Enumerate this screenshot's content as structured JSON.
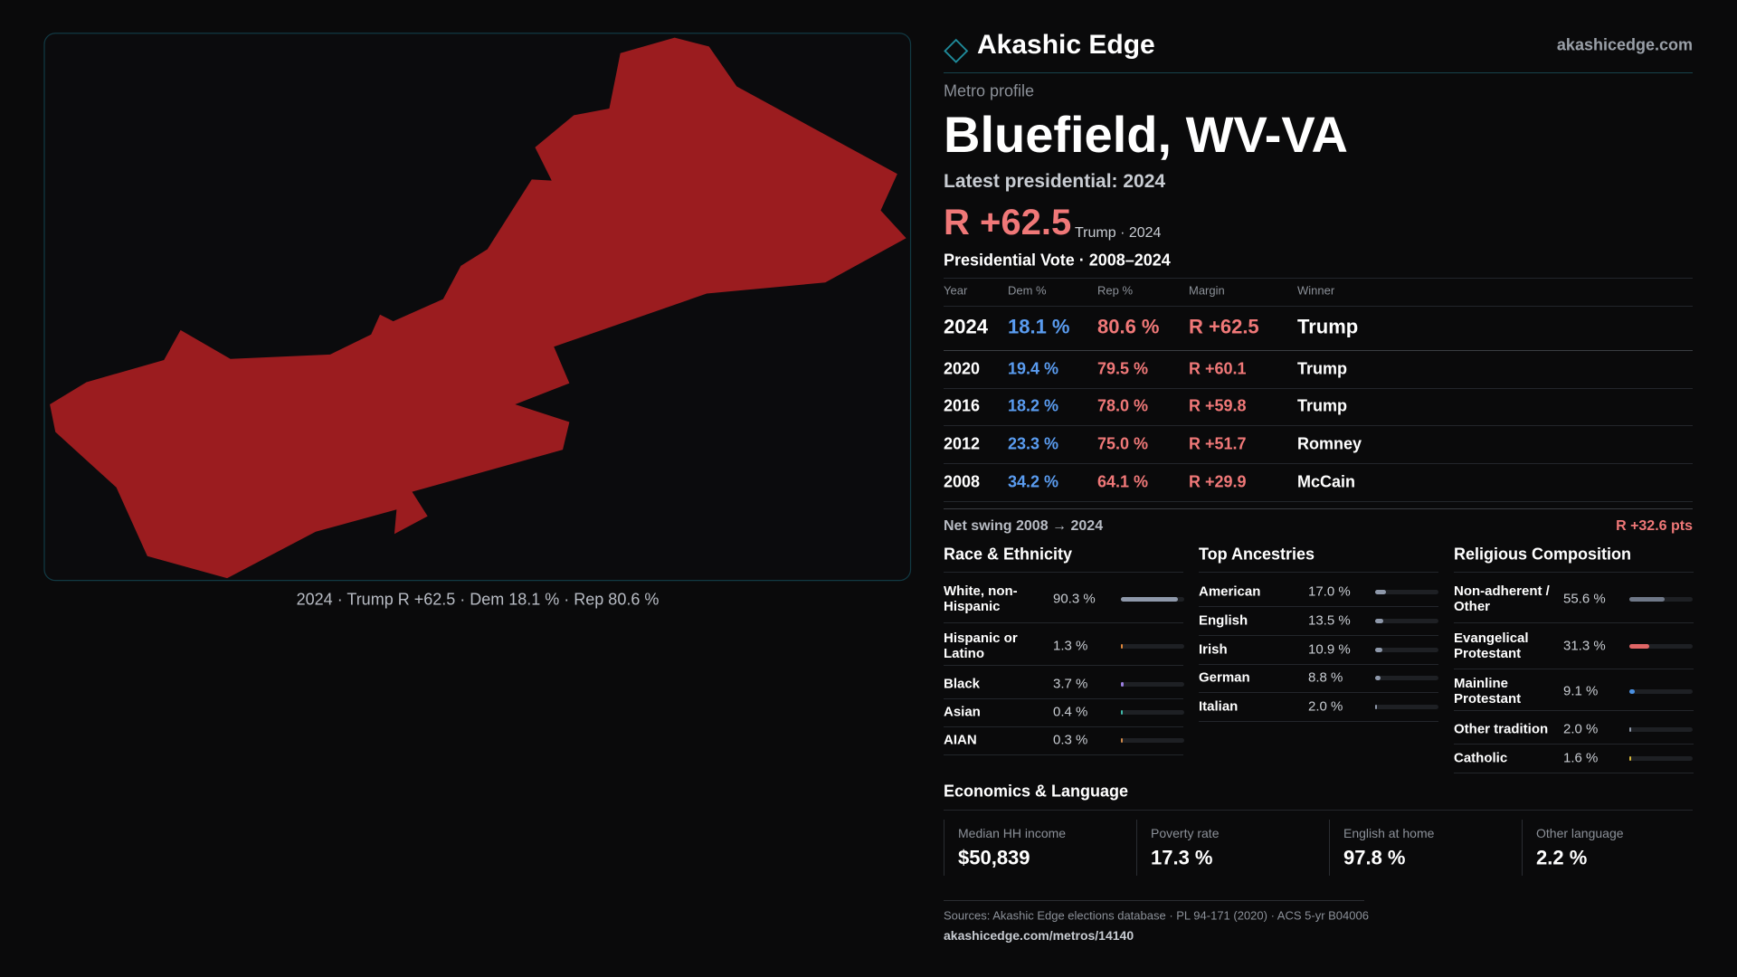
{
  "header": {
    "brand": "Akashic Edge",
    "site": "akashicedge.com"
  },
  "profile": {
    "kicker": "Metro profile",
    "title": "Bluefield, WV-VA",
    "latest": "Latest presidential: 2024",
    "margin": "R +62.5",
    "margin_note": "Trump · 2024"
  },
  "map": {
    "caption": "2024 · Trump R +62.5 · Dem 18.1 % · Rep 80.6 %"
  },
  "votes": {
    "title": "Presidential Vote · 2008–2024",
    "columns": [
      "Year",
      "Dem %",
      "Rep %",
      "Margin",
      "Winner"
    ],
    "rows": [
      [
        "2024",
        "18.1 %",
        "80.6 %",
        "R +62.5",
        "Trump"
      ],
      [
        "2020",
        "19.4 %",
        "79.5 %",
        "R +60.1",
        "Trump"
      ],
      [
        "2016",
        "18.2 %",
        "78.0 %",
        "R +59.8",
        "Trump"
      ],
      [
        "2012",
        "23.3 %",
        "75.0 %",
        "R +51.7",
        "Romney"
      ],
      [
        "2008",
        "34.2 %",
        "64.1 %",
        "R +29.9",
        "McCain"
      ]
    ]
  },
  "swing": {
    "label": "Net swing 2008 → 2024",
    "value": "R +32.6 pts"
  },
  "race": {
    "title": "Race & Ethnicity",
    "rows": [
      {
        "label": "White, non-Hispanic",
        "value": 90.3,
        "value_label": "90.3 %",
        "color": "#8e98aa"
      },
      {
        "label": "Hispanic or Latino",
        "value": 1.3,
        "value_label": "1.3 %",
        "color": "#e0873a"
      },
      {
        "label": "Black",
        "value": 3.7,
        "value_label": "3.7 %",
        "color": "#9b7fe0"
      },
      {
        "label": "Asian",
        "value": 0.4,
        "value_label": "0.4 %",
        "color": "#3fb8a8"
      },
      {
        "label": "AIAN",
        "value": 0.3,
        "value_label": "0.3 %",
        "color": "#d08a4a"
      }
    ]
  },
  "ancestry": {
    "title": "Top Ancestries",
    "rows": [
      {
        "label": "American",
        "value": 17.0,
        "value_label": "17.0 %",
        "color": "#8e98aa"
      },
      {
        "label": "English",
        "value": 13.5,
        "value_label": "13.5 %",
        "color": "#8e98aa"
      },
      {
        "label": "Irish",
        "value": 10.9,
        "value_label": "10.9 %",
        "color": "#8e98aa"
      },
      {
        "label": "German",
        "value": 8.8,
        "value_label": "8.8 %",
        "color": "#8e98aa"
      },
      {
        "label": "Italian",
        "value": 2.0,
        "value_label": "2.0 %",
        "color": "#8e98aa"
      }
    ]
  },
  "religion": {
    "title": "Religious Composition",
    "rows": [
      {
        "label": "Non-adherent / Other",
        "value": 55.6,
        "value_label": "55.6 %",
        "color": "#6f7888"
      },
      {
        "label": "Evangelical Protestant",
        "value": 31.3,
        "value_label": "31.3 %",
        "color": "#e06666"
      },
      {
        "label": "Mainline Protestant",
        "value": 9.1,
        "value_label": "9.1 %",
        "color": "#4a90e2"
      },
      {
        "label": "Other tradition",
        "value": 2.0,
        "value_label": "2.0 %",
        "color": "#8e98aa"
      },
      {
        "label": "Catholic",
        "value": 1.6,
        "value_label": "1.6 %",
        "color": "#d8b83a"
      }
    ]
  },
  "economics": {
    "title": "Economics & Language",
    "cards": [
      {
        "label": "Median HH income",
        "value": "$50,839"
      },
      {
        "label": "Poverty rate",
        "value": "17.3 %"
      },
      {
        "label": "English at home",
        "value": "97.8 %"
      },
      {
        "label": "Other language",
        "value": "2.2 %"
      }
    ]
  },
  "footer": {
    "sources": "Sources: Akashic Edge elections database · PL 94-171 (2020) · ACS 5-yr B04006",
    "url": "akashicedge.com/metros/14140"
  }
}
